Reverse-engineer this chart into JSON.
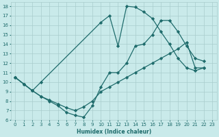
{
  "xlabel": "Humidex (Indice chaleur)",
  "background_color": "#c9eaea",
  "grid_color": "#a8cccc",
  "line_color": "#1e6b6b",
  "xlim": [
    -0.5,
    23.5
  ],
  "ylim": [
    6,
    18.4
  ],
  "xticks": [
    0,
    1,
    2,
    3,
    4,
    5,
    6,
    7,
    8,
    9,
    10,
    11,
    12,
    13,
    14,
    15,
    16,
    17,
    18,
    19,
    20,
    21,
    22,
    23
  ],
  "yticks": [
    6,
    7,
    8,
    9,
    10,
    11,
    12,
    13,
    14,
    15,
    16,
    17,
    18
  ],
  "curve1_x": [
    0,
    1,
    2,
    3,
    10,
    11,
    12,
    13,
    14,
    15,
    16,
    17,
    18,
    19,
    20,
    21,
    22
  ],
  "curve1_y": [
    10.5,
    9.8,
    9.1,
    10.0,
    16.3,
    17.0,
    13.8,
    18.0,
    17.9,
    17.4,
    16.7,
    15.3,
    14.0,
    12.5,
    11.5,
    11.2,
    11.5
  ],
  "curve2_x": [
    0,
    1,
    2,
    3,
    4,
    5,
    6,
    7,
    8,
    9,
    10,
    11,
    12,
    13,
    14,
    15,
    16,
    17,
    18,
    19,
    20,
    21,
    22,
    23
  ],
  "curve2_y": [
    10.5,
    9.8,
    9.1,
    8.5,
    8.0,
    7.5,
    6.8,
    6.5,
    6.3,
    7.5,
    9.5,
    11.0,
    11.0,
    12.0,
    13.8,
    14.0,
    15.0,
    16.5,
    16.5,
    15.3,
    13.8,
    12.5,
    12.2,
    11.5
  ],
  "curve3_x": [
    0,
    1,
    2,
    3,
    4,
    5,
    6,
    7,
    8,
    9,
    10,
    11,
    12,
    13,
    14,
    15,
    16,
    17,
    18,
    19,
    20,
    21,
    22,
    23
  ],
  "curve3_y": [
    10.5,
    9.8,
    9.1,
    8.5,
    8.1,
    7.7,
    7.3,
    7.0,
    7.4,
    8.0,
    9.0,
    9.5,
    10.0,
    10.5,
    11.0,
    11.5,
    12.0,
    12.5,
    13.0,
    13.5,
    14.2,
    11.5,
    11.5,
    null
  ],
  "markersize": 2.2,
  "linewidth": 0.9
}
